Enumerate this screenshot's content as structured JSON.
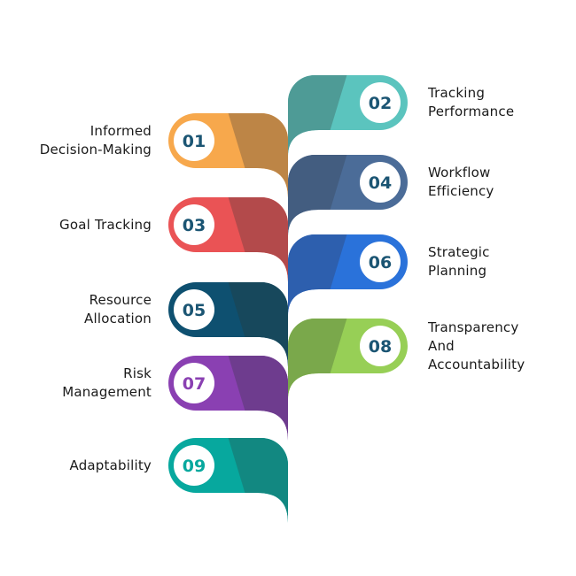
{
  "items": [
    {
      "number": "01",
      "label_lines": [
        "Informed",
        "Decision-Making"
      ],
      "side": "left",
      "light": "#F7A84C",
      "dark": "#BD8546",
      "number_color": "#1B5573"
    },
    {
      "number": "02",
      "label_lines": [
        "Tracking",
        "Performance"
      ],
      "side": "right",
      "light": "#5BC4BE",
      "dark": "#4E9B96",
      "number_color": "#1B5573"
    },
    {
      "number": "03",
      "label_lines": [
        "Goal Tracking"
      ],
      "side": "left",
      "light": "#EA5355",
      "dark": "#B34A4B",
      "number_color": "#1B5573"
    },
    {
      "number": "04",
      "label_lines": [
        "Workflow",
        "Efficiency"
      ],
      "side": "right",
      "light": "#4B6C98",
      "dark": "#435D80",
      "number_color": "#1B5573"
    },
    {
      "number": "05",
      "label_lines": [
        "Resource",
        "Allocation"
      ],
      "side": "left",
      "light": "#0E5070",
      "dark": "#17485C",
      "number_color": "#1B5573"
    },
    {
      "number": "06",
      "label_lines": [
        "Strategic",
        "Planning"
      ],
      "side": "right",
      "light": "#2A72DA",
      "dark": "#2D5FAE",
      "number_color": "#1B5573"
    },
    {
      "number": "07",
      "label_lines": [
        "Risk",
        "Management"
      ],
      "side": "left",
      "light": "#8A40B2",
      "dark": "#6E3C8E",
      "number_color": "#8A40B2"
    },
    {
      "number": "08",
      "label_lines": [
        "Transparency",
        "And",
        "Accountability"
      ],
      "side": "right",
      "light": "#97CF56",
      "dark": "#7AA84B",
      "number_color": "#1B5573"
    },
    {
      "number": "09",
      "label_lines": [
        "Adaptability"
      ],
      "side": "left",
      "light": "#07A89E",
      "dark": "#128881",
      "number_color": "#07A89E"
    }
  ]
}
